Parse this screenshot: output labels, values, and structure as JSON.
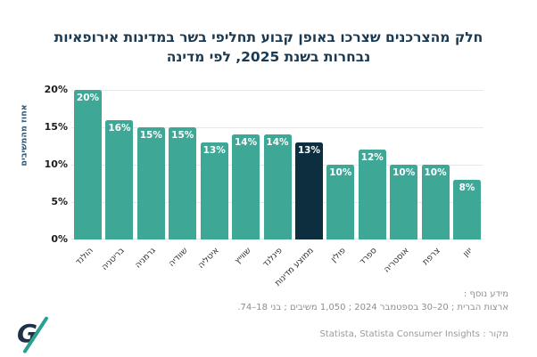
{
  "title": {
    "line1": "חלק מהצרכנים שצרכו באופן קבוע תחליפי בשר במדינות אירופאיות",
    "line2": "נבחרות בשנת 2025, לפי מדינה"
  },
  "chart_data": {
    "type": "bar",
    "title": "חלק מהצרכנים שצרכו באופן קבוע תחליפי בשר במדינות אירופאיות נבחרות בשנת 2025, לפי מדינה",
    "xlabel": "",
    "ylabel": "אחוז מהמשיבים",
    "ylim": [
      0,
      20
    ],
    "grid": true,
    "legend": "none",
    "categories": [
      "הולנד",
      "בריטניה",
      "גרמניה",
      "שוודיה",
      "איטליה",
      "שווייץ",
      "פינלנד",
      "ממוצע מדינות",
      "פולין",
      "ספרד",
      "אוסטריה",
      "צרפת",
      "יוון"
    ],
    "values": [
      20,
      16,
      15,
      15,
      13,
      14,
      14,
      13,
      10,
      12,
      10,
      10,
      8
    ],
    "value_labels": [
      "20%",
      "16%",
      "15%",
      "15%",
      "13%",
      "14%",
      "14%",
      "13%",
      "10%",
      "12%",
      "10%",
      "10%",
      "8%"
    ],
    "highlight_index": 7,
    "yticks": {
      "values": [
        0,
        5,
        10,
        15,
        20
      ],
      "labels": [
        "0%",
        "5%",
        "10%",
        "15%",
        "20%"
      ]
    },
    "colors": {
      "bar": "#3ea796",
      "highlight": "#0d2e3e",
      "grid": "#e8e8e8",
      "title": "#1b3a52",
      "ylabel": "#27567a",
      "value_label": "#ffffff"
    }
  },
  "footnote": {
    "label": "מידע נוסף :",
    "text": "ארצות הברית ; 20–30 בספטמבר 2024 ; 1,050 משיבים ; בני 18–74."
  },
  "source": {
    "text": "מקור : Statista, Statista Consumer Insights"
  },
  "logo": {
    "letter": "G",
    "letter_color": "#1e3148",
    "slash_color": "#2aa091"
  }
}
